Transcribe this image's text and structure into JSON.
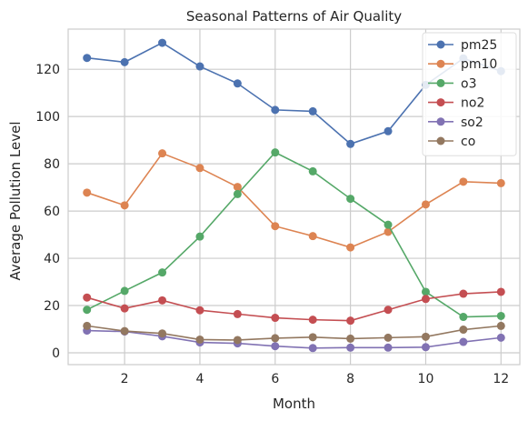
{
  "chart_data": {
    "type": "line",
    "title": "Seasonal Patterns of Air Quality",
    "xlabel": "Month",
    "ylabel": "Average Pollution Level",
    "x": [
      1,
      2,
      3,
      4,
      5,
      6,
      7,
      8,
      9,
      10,
      11,
      12
    ],
    "xlim": [
      0.5,
      12.5
    ],
    "ylim": [
      -5,
      137
    ],
    "xticks": [
      2,
      4,
      6,
      8,
      10,
      12
    ],
    "yticks": [
      0,
      20,
      40,
      60,
      80,
      100,
      120
    ],
    "grid": true,
    "legend_position": "top-right",
    "series": [
      {
        "name": "pm25",
        "color": "#4c72b0",
        "values": [
          124.8,
          123.0,
          131.2,
          121.2,
          114.0,
          102.8,
          102.2,
          88.4,
          93.8,
          113.4,
          124.6,
          119.2
        ]
      },
      {
        "name": "pm10",
        "color": "#dd8452",
        "values": [
          67.8,
          62.4,
          84.4,
          78.2,
          70.2,
          53.6,
          49.4,
          44.6,
          51.2,
          62.8,
          72.4,
          71.8
        ]
      },
      {
        "name": "o3",
        "color": "#55a868",
        "values": [
          18.2,
          26.2,
          34.0,
          49.2,
          67.2,
          84.8,
          76.8,
          65.2,
          54.2,
          25.8,
          15.2,
          15.6
        ]
      },
      {
        "name": "no2",
        "color": "#c44e52",
        "values": [
          23.4,
          18.8,
          22.2,
          18.0,
          16.4,
          14.8,
          14.0,
          13.6,
          18.2,
          22.8,
          25.0,
          25.8
        ]
      },
      {
        "name": "so2",
        "color": "#8172b3",
        "values": [
          9.4,
          9.0,
          7.0,
          4.4,
          4.0,
          2.8,
          2.0,
          2.2,
          2.2,
          2.4,
          4.6,
          6.4
        ]
      },
      {
        "name": "co",
        "color": "#937860",
        "values": [
          11.4,
          9.2,
          8.2,
          5.6,
          5.4,
          6.2,
          6.6,
          6.0,
          6.4,
          6.8,
          9.8,
          11.4
        ]
      }
    ]
  }
}
